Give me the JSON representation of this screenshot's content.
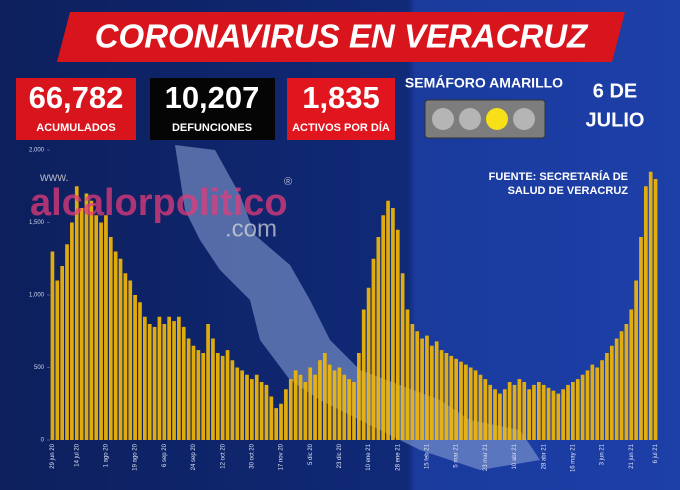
{
  "header": {
    "title": "CORONAVIRUS EN VERACRUZ",
    "stats": [
      {
        "value": "66,782",
        "label": "ACUMULADOS"
      },
      {
        "value": "10,207",
        "label": "DEFUNCIONES"
      },
      {
        "value": "1,835",
        "label": "ACTIVOS POR DÍA"
      }
    ],
    "semaforo": "SEMÁFORO AMARILLO",
    "date": [
      "6 DE",
      "JULIO"
    ]
  },
  "source": [
    "FUENTE: SECRETARÍA DE",
    "SALUD DE VERACRUZ"
  ],
  "watermark": [
    "www.",
    "alcalorpolitico",
    "®",
    ".com"
  ],
  "chart_data": {
    "type": "bar",
    "color": "#f2b705",
    "categories": [
      "29 jun 20",
      null,
      null,
      null,
      null,
      "14 jul 20",
      null,
      null,
      null,
      null,
      null,
      "1 ago 20",
      null,
      null,
      null,
      null,
      null,
      "19 ago 20",
      null,
      null,
      null,
      null,
      null,
      "6 sep 20",
      null,
      null,
      null,
      null,
      null,
      "24 sep 20",
      null,
      null,
      null,
      null,
      null,
      "12 oct 20",
      null,
      null,
      null,
      null,
      null,
      "30 oct 20",
      null,
      null,
      null,
      null,
      null,
      "17 nov 20",
      null,
      null,
      null,
      null,
      null,
      "5 dic 20",
      null,
      null,
      null,
      null,
      null,
      "23 dic 20",
      null,
      null,
      null,
      null,
      null,
      "10 ene 21",
      null,
      null,
      null,
      null,
      null,
      "28 ene 21",
      null,
      null,
      null,
      null,
      null,
      "15 feb 21",
      null,
      null,
      null,
      null,
      null,
      "5 mar 21",
      null,
      null,
      null,
      null,
      null,
      "23 mar 21",
      null,
      null,
      null,
      null,
      null,
      "10 abr 21",
      null,
      null,
      null,
      null,
      null,
      "28 abr 21",
      null,
      null,
      null,
      null,
      null,
      "16 may 21",
      null,
      null,
      null,
      null,
      null,
      "3 jun 21",
      null,
      null,
      null,
      null,
      null,
      "21 jun 21",
      null,
      null,
      null,
      null,
      "6 jul 21"
    ],
    "values": [
      1300,
      1100,
      1200,
      1350,
      1500,
      1750,
      1600,
      1700,
      1650,
      1550,
      1500,
      1550,
      1400,
      1300,
      1250,
      1150,
      1100,
      1000,
      950,
      850,
      800,
      780,
      850,
      800,
      850,
      820,
      850,
      780,
      700,
      650,
      620,
      600,
      800,
      700,
      600,
      580,
      620,
      550,
      500,
      480,
      450,
      420,
      450,
      400,
      380,
      300,
      220,
      250,
      350,
      420,
      480,
      450,
      400,
      500,
      450,
      550,
      600,
      520,
      480,
      500,
      450,
      420,
      400,
      600,
      900,
      1050,
      1250,
      1400,
      1550,
      1650,
      1600,
      1450,
      1150,
      900,
      800,
      750,
      700,
      720,
      650,
      680,
      620,
      600,
      580,
      560,
      540,
      520,
      500,
      480,
      450,
      420,
      380,
      350,
      320,
      350,
      400,
      380,
      420,
      400,
      350,
      380,
      400,
      380,
      360,
      340,
      320,
      350,
      380,
      400,
      420,
      450,
      480,
      520,
      500,
      550,
      600,
      650,
      700,
      750,
      800,
      900,
      1100,
      1400,
      1750,
      1850,
      1800
    ],
    "ylim": [
      0,
      2000
    ],
    "yticks": [
      0,
      500,
      {
        "value": 1000,
        "label": "1,000"
      },
      {
        "value": 1500,
        "label": "1,500"
      },
      {
        "value": 2000,
        "label": "2,000"
      }
    ],
    "grid": false
  }
}
